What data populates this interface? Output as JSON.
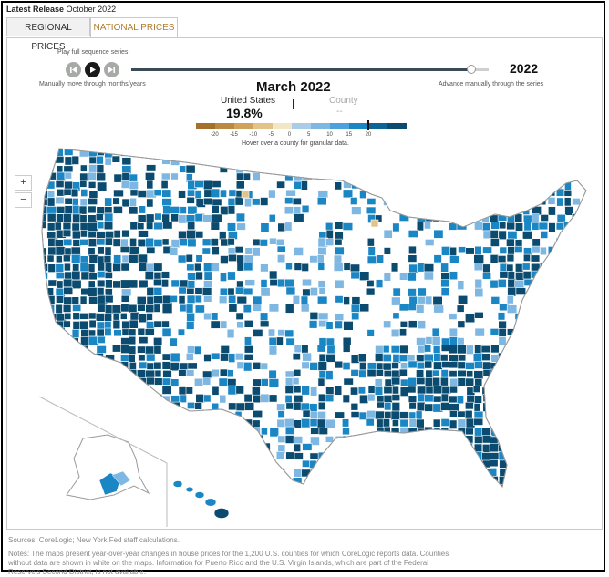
{
  "header": {
    "release_label": "Latest Release",
    "release_date": "October 2022"
  },
  "tabs": [
    {
      "label": "REGIONAL PRICES",
      "active": false
    },
    {
      "label": "NATIONAL PRICES",
      "active": true
    }
  ],
  "controls": {
    "play_label": "Play full sequence series",
    "manual_label": "Manually move through months/years",
    "advance_label": "Advance manually through the series",
    "year": "2022",
    "slider_position": 0.99
  },
  "readout": {
    "month": "March 2022",
    "us_label": "United States",
    "us_value": "19.8%",
    "county_label": "County",
    "county_value": "-- "
  },
  "legend": {
    "colors": [
      "#a5702b",
      "#bb8a42",
      "#cfa35c",
      "#e2c48a",
      "#f2e6c7",
      "#a9cce8",
      "#7db7e2",
      "#4ea2dc",
      "#1b86c4",
      "#0d6596",
      "#0a4b6f"
    ],
    "ticks": [
      "-20",
      "-15",
      "-10",
      "-5",
      "0",
      "5",
      "10",
      "15",
      "20"
    ],
    "marker_value": 19.8
  },
  "hover_note": "Hover over a county for granular data.",
  "zoom": {
    "in_label": "+",
    "out_label": "−"
  },
  "colors": {
    "dark": "#0a4b6f",
    "mid": "#1b86c4",
    "light": "#7db7e2",
    "pale": "#a9cce8",
    "tan": "#e2c48a",
    "outline": "#9a9a9a"
  },
  "footer": {
    "sources": "Sources: CoreLogic; New York Fed staff calculations.",
    "notes": "Notes: The maps present year-over-year changes in house prices for the 1,200 U.S. counties for which CoreLogic reports data. Counties without data are shown in white on the maps. Information for Puerto Rico and the U.S. Virgin Islands, which are part of the Federal Reserve's Second District, is not available."
  }
}
